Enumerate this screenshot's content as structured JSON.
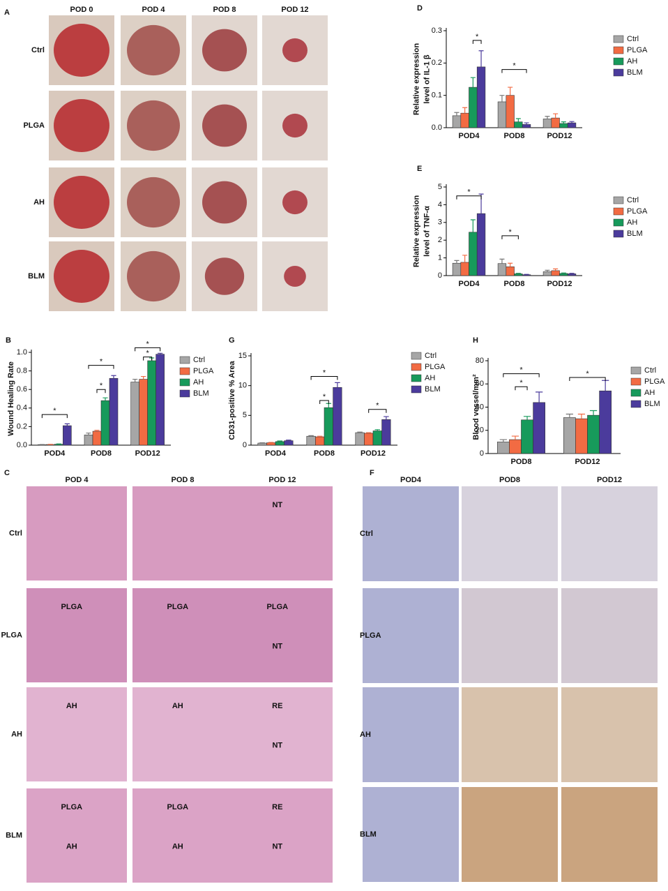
{
  "panel_A": {
    "label": "A",
    "columns": [
      "POD 0",
      "POD 4",
      "POD 8",
      "POD 12"
    ],
    "rows": [
      "Ctrl",
      "PLGA",
      "AH",
      "BLM"
    ]
  },
  "panel_C": {
    "label": "C",
    "columns": [
      "POD 4",
      "POD 8",
      "POD 12"
    ],
    "rows": [
      "Ctrl",
      "PLGA",
      "AH",
      "BLM"
    ],
    "region_labels": [
      [
        [],
        [],
        [
          "NT"
        ]
      ],
      [
        [
          "PLGA"
        ],
        [
          "PLGA"
        ],
        [
          "PLGA",
          "NT"
        ]
      ],
      [
        [
          "AH"
        ],
        [
          "AH"
        ],
        [
          "RE",
          "NT"
        ]
      ],
      [
        [
          "PLGA",
          "AH"
        ],
        [
          "PLGA",
          "AH"
        ],
        [
          "RE",
          "NT"
        ]
      ]
    ]
  },
  "panel_F": {
    "label": "F",
    "columns": [
      "POD4",
      "POD8",
      "POD12"
    ],
    "rows": [
      "Ctrl",
      "PLGA",
      "AH",
      "BLM"
    ]
  },
  "chart_data": [
    {
      "panel_label": "D",
      "type": "bar",
      "y_label": [
        "Relative expression",
        "level of IL-1 β"
      ],
      "categories": [
        "POD4",
        "POD8",
        "POD12"
      ],
      "ylim": [
        0,
        0.3
      ],
      "yticks": [
        {
          "value": 0,
          "label": "0.0"
        },
        0.1,
        0.2,
        0.3
      ],
      "annotations": [
        "*",
        "*"
      ],
      "series": [
        {
          "name": "Ctrl",
          "color": "#a6a6a6",
          "values": [
            0.037,
            0.08,
            0.027
          ],
          "errors": [
            0.01,
            0.02,
            0.008
          ]
        },
        {
          "name": "PLGA",
          "color": "#f26b43",
          "values": [
            0.045,
            0.1,
            0.03
          ],
          "errors": [
            0.017,
            0.025,
            0.013
          ]
        },
        {
          "name": "AH",
          "color": "#179a5b",
          "values": [
            0.125,
            0.018,
            0.013
          ],
          "errors": [
            0.03,
            0.01,
            0.005
          ]
        },
        {
          "name": "BLM",
          "color": "#4b3b9c",
          "values": [
            0.188,
            0.01,
            0.015
          ],
          "errors": [
            0.05,
            0.005,
            0.004
          ]
        }
      ]
    },
    {
      "panel_label": "E",
      "type": "bar",
      "y_label": [
        "Relative expression",
        "level of TNF-α"
      ],
      "categories": [
        "POD4",
        "POD8",
        "POD12"
      ],
      "ylim": [
        0,
        5
      ],
      "yticks": [
        0,
        1,
        2,
        3,
        4,
        5
      ],
      "annotations": [
        "*",
        "*"
      ],
      "series": [
        {
          "name": "Ctrl",
          "color": "#a6a6a6",
          "values": [
            0.7,
            0.68,
            0.22
          ],
          "errors": [
            0.15,
            0.25,
            0.08
          ]
        },
        {
          "name": "PLGA",
          "color": "#f26b43",
          "values": [
            0.75,
            0.5,
            0.28
          ],
          "errors": [
            0.4,
            0.2,
            0.1
          ]
        },
        {
          "name": "AH",
          "color": "#179a5b",
          "values": [
            2.45,
            0.1,
            0.12
          ],
          "errors": [
            0.7,
            0.03,
            0.03
          ]
        },
        {
          "name": "BLM",
          "color": "#4b3b9c",
          "values": [
            3.5,
            0.05,
            0.1
          ],
          "errors": [
            1.1,
            0.02,
            0.03
          ]
        }
      ]
    },
    {
      "panel_label": "B",
      "type": "bar",
      "y_label": [
        "Wound Healing Rate"
      ],
      "categories": [
        "POD4",
        "POD8",
        "POD12"
      ],
      "ylim": [
        0,
        1
      ],
      "yticks": [
        {
          "value": 0,
          "label": "0.0"
        },
        0.2,
        0.4,
        0.6,
        0.8,
        {
          "value": 1,
          "label": "1.0"
        }
      ],
      "annotations": [
        "*",
        "*",
        "*",
        "*",
        "*"
      ],
      "series": [
        {
          "name": "Ctrl",
          "color": "#a6a6a6",
          "values": [
            0.005,
            0.11,
            0.68
          ],
          "errors": [
            0.002,
            0.02,
            0.03
          ]
        },
        {
          "name": "PLGA",
          "color": "#f26b43",
          "values": [
            0.007,
            0.15,
            0.71
          ],
          "errors": [
            0.002,
            0.01,
            0.03
          ]
        },
        {
          "name": "AH",
          "color": "#179a5b",
          "values": [
            0.01,
            0.48,
            0.91
          ],
          "errors": [
            0.003,
            0.03,
            0.03
          ]
        },
        {
          "name": "BLM",
          "color": "#4b3b9c",
          "values": [
            0.21,
            0.72,
            0.98
          ],
          "errors": [
            0.02,
            0.03,
            0.01
          ]
        }
      ]
    },
    {
      "panel_label": "G",
      "type": "bar",
      "y_label": [
        "CD31-positive % Area"
      ],
      "categories": [
        "POD4",
        "POD8",
        "POD12"
      ],
      "ylim": [
        0,
        15
      ],
      "yticks": [
        0,
        5,
        10,
        15
      ],
      "annotations": [
        "*",
        "*",
        "*"
      ],
      "series": [
        {
          "name": "Ctrl",
          "color": "#a6a6a6",
          "values": [
            0.35,
            1.5,
            2.1
          ],
          "errors": [
            0.05,
            0.1,
            0.1
          ]
        },
        {
          "name": "PLGA",
          "color": "#f26b43",
          "values": [
            0.4,
            1.4,
            2.0
          ],
          "errors": [
            0.05,
            0.1,
            0.1
          ]
        },
        {
          "name": "AH",
          "color": "#179a5b",
          "values": [
            0.6,
            6.3,
            2.4
          ],
          "errors": [
            0.1,
            0.7,
            0.2
          ]
        },
        {
          "name": "BLM",
          "color": "#4b3b9c",
          "values": [
            0.75,
            9.7,
            4.3
          ],
          "errors": [
            0.1,
            0.8,
            0.5
          ]
        }
      ]
    },
    {
      "panel_label": "H",
      "type": "bar",
      "y_label": [
        "Blood vessel/mm²"
      ],
      "categories": [
        "POD8",
        "POD12"
      ],
      "ylim": [
        0,
        80
      ],
      "yticks": [
        0,
        20,
        40,
        60,
        80
      ],
      "annotations": [
        "*",
        "*",
        "*"
      ],
      "series": [
        {
          "name": "Ctrl",
          "color": "#a6a6a6",
          "values": [
            10,
            31
          ],
          "errors": [
            2,
            3
          ]
        },
        {
          "name": "PLGA",
          "color": "#f26b43",
          "values": [
            12,
            30
          ],
          "errors": [
            3,
            4
          ]
        },
        {
          "name": "AH",
          "color": "#179a5b",
          "values": [
            29,
            33
          ],
          "errors": [
            3,
            4
          ]
        },
        {
          "name": "BLM",
          "color": "#4b3b9c",
          "values": [
            44,
            54
          ],
          "errors": [
            9,
            9
          ]
        }
      ]
    }
  ]
}
